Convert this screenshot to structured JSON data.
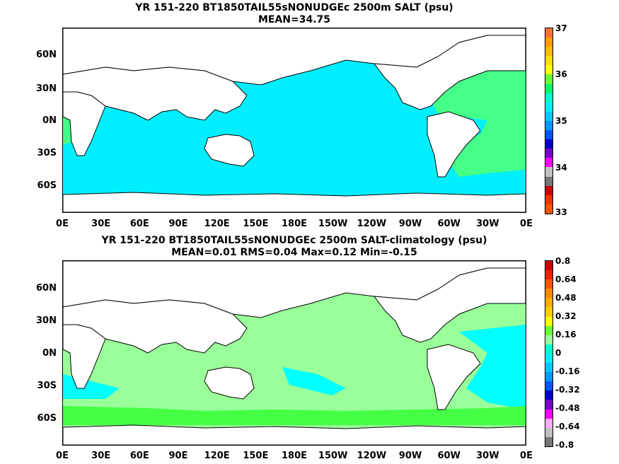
{
  "panels": [
    {
      "title_line1": "YR 151-220 BT1850TAIL55sNONUDGEc 2500m SALT (psu)",
      "title_line2": "MEAN=34.75",
      "colorbar": {
        "ticks": [
          "37",
          "36",
          "35",
          "34",
          "33"
        ],
        "colors": [
          "#ff7030",
          "#ff9900",
          "#ffbb00",
          "#ffdd00",
          "#ffff00",
          "#66ff33",
          "#00ff66",
          "#00ffcc",
          "#00eeff",
          "#00c8ff",
          "#0099ff",
          "#0055ff",
          "#0000cc",
          "#7700cc",
          "#ff00ff",
          "#c0c0c0",
          "#777777",
          "#cc0000",
          "#ee3300",
          "#ff5500"
        ]
      }
    },
    {
      "title_line1": "YR 151-220 BT1850TAIL55sNONUDGEc 2500m SALT-climatology (psu)",
      "title_line2": "MEAN=0.01   RMS=0.04   Max=0.12   Min=-0.15",
      "colorbar": {
        "ticks": [
          "0.8",
          "0.64",
          "0.48",
          "0.32",
          "0.16",
          "0",
          "-0.16",
          "-0.32",
          "-0.48",
          "-0.64",
          "-0.8"
        ],
        "colors": [
          "#cc0000",
          "#ee2200",
          "#ff5500",
          "#ff8800",
          "#ffaa00",
          "#ffcc00",
          "#ffff00",
          "#66ff33",
          "#99ff99",
          "#00ffcc",
          "#00eeff",
          "#00c8ff",
          "#0099ff",
          "#0055ff",
          "#0000cc",
          "#7700cc",
          "#ff00ff",
          "#ffaaff",
          "#c0c0c0",
          "#777777"
        ]
      }
    }
  ],
  "axes": {
    "lat_labels": [
      "60N",
      "30N",
      "0N",
      "30S",
      "60S"
    ],
    "lon_labels": [
      "0E",
      "30E",
      "60E",
      "90E",
      "120E",
      "150E",
      "180E",
      "150W",
      "120W",
      "90W",
      "60W",
      "30W",
      "0E"
    ]
  },
  "colors": {
    "land": "#ffffff",
    "coast": "#000000",
    "top_ocean": "#00eeff",
    "top_atlantic": "#44ff88",
    "bottom_ocean": "#99ff99",
    "bottom_cyan": "#00ffff",
    "bottom_green": "#44ff44"
  }
}
